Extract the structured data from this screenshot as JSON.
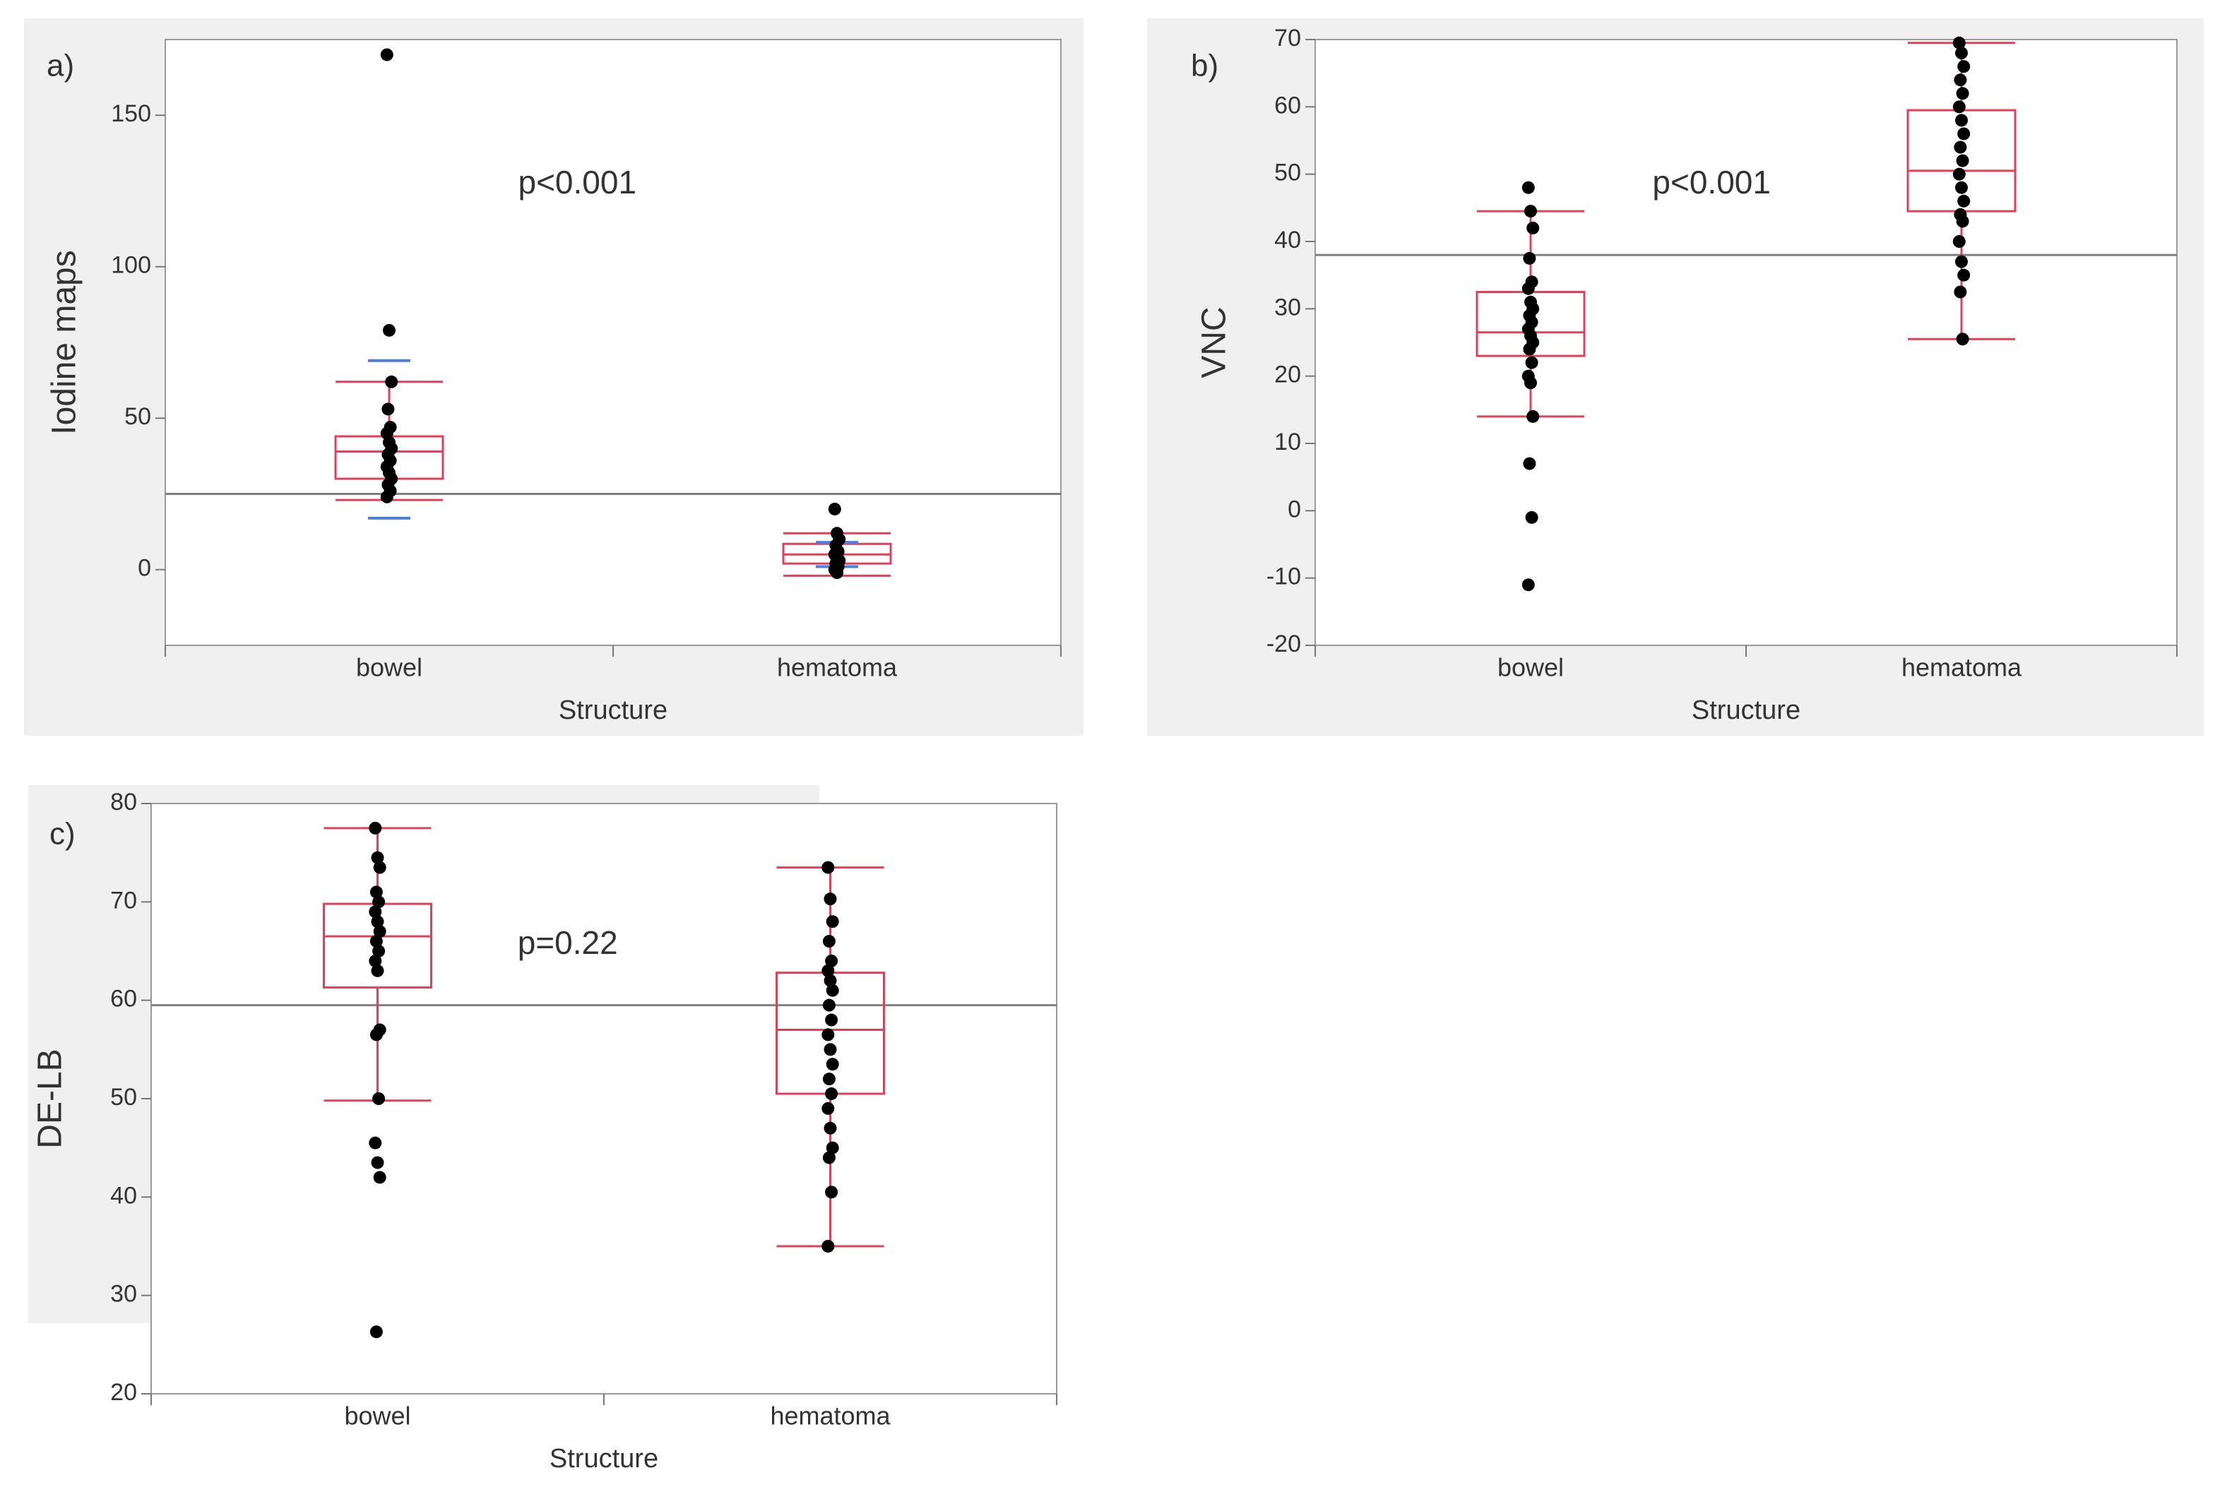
{
  "chart_data": [
    {
      "type": "box",
      "panel_label": "a)",
      "annotation": "p<0.001",
      "x_label": "Structure",
      "y_label": "Iodine maps",
      "categories": [
        "bowel",
        "hematoma"
      ],
      "ylim": [
        -25,
        175
      ],
      "yticks": [
        0,
        50,
        100,
        150
      ],
      "box_color": "#e0405a",
      "point_color": "#000000",
      "interval_color": "#4a7fe0",
      "mean_color": "#808080",
      "mean": 25,
      "boxes": [
        {
          "low": 23,
          "q1": 30,
          "median": 39,
          "q3": 44,
          "high": 62
        },
        {
          "low": -2,
          "q1": 2,
          "median": 5,
          "q3": 8.5,
          "high": 12
        }
      ],
      "intervals": [
        [
          17,
          69
        ],
        [
          1,
          9
        ]
      ],
      "points": [
        [
          170,
          79,
          62,
          53,
          47,
          45,
          42,
          40,
          38,
          36,
          34,
          32,
          30,
          28,
          26,
          24
        ],
        [
          20,
          12,
          10,
          8,
          6,
          5,
          4,
          3,
          2,
          1,
          0,
          -1
        ]
      ]
    },
    {
      "type": "box",
      "panel_label": "b)",
      "annotation": "p<0.001",
      "x_label": "Structure",
      "y_label": "VNC",
      "categories": [
        "bowel",
        "hematoma"
      ],
      "ylim": [
        -20,
        70
      ],
      "yticks": [
        -20,
        -10,
        0,
        10,
        20,
        30,
        40,
        50,
        60,
        70
      ],
      "box_color": "#e0405a",
      "point_color": "#000000",
      "mean_color": "#808080",
      "mean": 38,
      "boxes": [
        {
          "low": 14,
          "q1": 23,
          "median": 26.5,
          "q3": 32.5,
          "high": 44.5
        },
        {
          "low": 25.5,
          "q1": 44.5,
          "median": 50.5,
          "q3": 59.5,
          "high": 69.5
        }
      ],
      "points": [
        [
          48,
          44.5,
          42,
          37.5,
          34,
          33,
          31,
          30,
          29,
          28,
          27,
          26,
          25,
          24,
          22,
          20,
          19,
          14,
          7,
          -1,
          -11
        ],
        [
          69.5,
          68,
          66,
          64,
          62,
          60,
          58,
          56,
          54,
          52,
          50,
          48,
          46,
          44,
          43,
          40,
          37,
          35,
          32.5,
          25.5
        ]
      ]
    },
    {
      "type": "box",
      "panel_label": "c)",
      "annotation": "p=0.22",
      "x_label": "Structure",
      "y_label": "DE-LB",
      "categories": [
        "bowel",
        "hematoma"
      ],
      "ylim": [
        20,
        80
      ],
      "yticks": [
        20,
        30,
        40,
        50,
        60,
        70,
        80
      ],
      "box_color": "#e0405a",
      "point_color": "#000000",
      "mean_color": "#808080",
      "mean": 59.5,
      "boxes": [
        {
          "low": 49.8,
          "q1": 61.3,
          "median": 66.5,
          "q3": 69.8,
          "high": 77.5
        },
        {
          "low": 35,
          "q1": 50.5,
          "median": 57,
          "q3": 62.8,
          "high": 73.5
        }
      ],
      "points": [
        [
          77.5,
          74.5,
          73.5,
          71,
          70,
          69,
          68,
          67,
          66,
          65,
          64,
          63,
          57,
          56.5,
          50,
          45.5,
          43.5,
          42,
          26.3
        ],
        [
          73.5,
          70.3,
          68,
          66,
          64,
          63,
          62,
          61,
          59.5,
          58,
          56.5,
          55,
          53.5,
          52,
          50.5,
          49,
          47,
          45,
          44,
          40.5,
          35
        ]
      ]
    }
  ]
}
